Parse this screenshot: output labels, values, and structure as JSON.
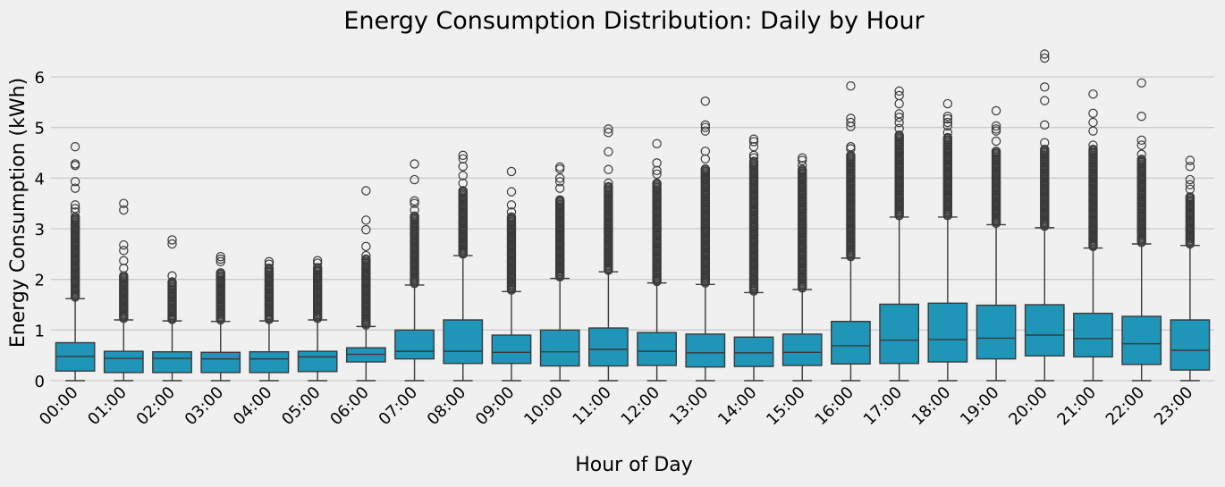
{
  "chart_data": {
    "type": "box",
    "title": "Energy Consumption Distribution: Daily by Hour",
    "xlabel": "Hour of Day",
    "ylabel": "Energy Consumption (kWh)",
    "ylim": [
      -0.05,
      6.6
    ],
    "y_ticks": [
      0,
      1,
      2,
      3,
      4,
      5,
      6
    ],
    "grid": true,
    "box_color": "#1f95b8",
    "background": "#f0f0f0",
    "categories": [
      "00:00",
      "01:00",
      "02:00",
      "03:00",
      "04:00",
      "05:00",
      "06:00",
      "07:00",
      "08:00",
      "09:00",
      "10:00",
      "11:00",
      "12:00",
      "13:00",
      "14:00",
      "15:00",
      "16:00",
      "17:00",
      "18:00",
      "19:00",
      "20:00",
      "21:00",
      "22:00",
      "23:00"
    ],
    "boxes": [
      {
        "min": 0.0,
        "q1": 0.19,
        "median": 0.48,
        "q3": 0.75,
        "max": 1.62,
        "outlier_max": 4.62,
        "outliers": [
          4.62,
          4.28,
          4.25,
          3.93,
          3.8,
          3.47,
          3.4,
          3.33,
          3.23
        ]
      },
      {
        "min": 0.0,
        "q1": 0.16,
        "median": 0.44,
        "q3": 0.58,
        "max": 1.2,
        "outlier_max": 3.5,
        "outliers": [
          3.5,
          3.37,
          2.68,
          2.57,
          2.37,
          2.22,
          2.07
        ]
      },
      {
        "min": 0.0,
        "q1": 0.16,
        "median": 0.44,
        "q3": 0.57,
        "max": 1.18,
        "outlier_max": 2.78,
        "outliers": [
          2.78,
          2.7,
          2.07,
          1.95
        ]
      },
      {
        "min": 0.0,
        "q1": 0.16,
        "median": 0.43,
        "q3": 0.56,
        "max": 1.17,
        "outlier_max": 2.45,
        "outliers": [
          2.45,
          2.4,
          2.35,
          2.13
        ]
      },
      {
        "min": 0.0,
        "q1": 0.16,
        "median": 0.43,
        "q3": 0.57,
        "max": 1.18,
        "outlier_max": 2.35,
        "outliers": [
          2.35,
          2.3,
          2.22
        ]
      },
      {
        "min": 0.0,
        "q1": 0.18,
        "median": 0.47,
        "q3": 0.58,
        "max": 1.2,
        "outlier_max": 2.37,
        "outliers": [
          2.37,
          2.32,
          2.23
        ]
      },
      {
        "min": 0.0,
        "q1": 0.37,
        "median": 0.52,
        "q3": 0.65,
        "max": 1.07,
        "outlier_max": 3.75,
        "outliers": [
          3.75,
          3.17,
          2.98,
          2.65,
          2.47,
          2.4
        ]
      },
      {
        "min": 0.0,
        "q1": 0.43,
        "median": 0.58,
        "q3": 1.0,
        "max": 1.89,
        "outlier_max": 4.28,
        "outliers": [
          4.28,
          3.97,
          3.55,
          3.5,
          3.37,
          3.25
        ]
      },
      {
        "min": 0.0,
        "q1": 0.34,
        "median": 0.58,
        "q3": 1.2,
        "max": 2.47,
        "outlier_max": 4.45,
        "outliers": [
          4.45,
          4.38,
          4.23,
          4.05,
          3.9,
          3.75
        ]
      },
      {
        "min": 0.0,
        "q1": 0.34,
        "median": 0.56,
        "q3": 0.9,
        "max": 1.76,
        "outlier_max": 4.13,
        "outliers": [
          4.13,
          3.73,
          3.47,
          3.33,
          3.23
        ]
      },
      {
        "min": 0.0,
        "q1": 0.29,
        "median": 0.57,
        "q3": 1.0,
        "max": 2.02,
        "outlier_max": 4.22,
        "outliers": [
          4.22,
          4.18,
          4.0,
          3.93,
          3.8,
          3.57
        ]
      },
      {
        "min": 0.0,
        "q1": 0.29,
        "median": 0.62,
        "q3": 1.04,
        "max": 2.15,
        "outlier_max": 4.97,
        "outliers": [
          4.97,
          4.9,
          4.52,
          4.17,
          3.9,
          3.83
        ]
      },
      {
        "min": 0.0,
        "q1": 0.3,
        "median": 0.58,
        "q3": 0.95,
        "max": 1.93,
        "outlier_max": 4.68,
        "outliers": [
          4.68,
          4.3,
          4.15,
          4.08,
          3.9
        ]
      },
      {
        "min": 0.0,
        "q1": 0.27,
        "median": 0.55,
        "q3": 0.92,
        "max": 1.9,
        "outlier_max": 5.52,
        "outliers": [
          5.52,
          5.05,
          5.0,
          4.93,
          4.53,
          4.38,
          4.18
        ]
      },
      {
        "min": 0.0,
        "q1": 0.28,
        "median": 0.55,
        "q3": 0.86,
        "max": 1.74,
        "outlier_max": 4.77,
        "outliers": [
          4.77,
          4.72,
          4.62,
          4.45,
          4.4,
          4.33
        ]
      },
      {
        "min": 0.0,
        "q1": 0.3,
        "median": 0.56,
        "q3": 0.92,
        "max": 1.8,
        "outlier_max": 4.4,
        "outliers": [
          4.4,
          4.35,
          4.25,
          4.17
        ]
      },
      {
        "min": 0.0,
        "q1": 0.33,
        "median": 0.69,
        "q3": 1.17,
        "max": 2.42,
        "outlier_max": 5.82,
        "outliers": [
          5.82,
          5.18,
          5.1,
          5.02,
          4.62,
          4.58,
          4.45
        ]
      },
      {
        "min": 0.0,
        "q1": 0.34,
        "median": 0.8,
        "q3": 1.51,
        "max": 3.23,
        "outlier_max": 5.72,
        "outliers": [
          5.72,
          5.63,
          5.47,
          5.27,
          5.2,
          5.1,
          4.98,
          4.85
        ]
      },
      {
        "min": 0.0,
        "q1": 0.37,
        "median": 0.81,
        "q3": 1.53,
        "max": 3.23,
        "outlier_max": 5.47,
        "outliers": [
          5.47,
          5.22,
          5.17,
          5.1,
          5.03,
          4.9,
          4.8
        ]
      },
      {
        "min": 0.0,
        "q1": 0.43,
        "median": 0.84,
        "q3": 1.49,
        "max": 3.08,
        "outlier_max": 5.33,
        "outliers": [
          5.33,
          5.03,
          4.97,
          4.93,
          4.73,
          4.53
        ]
      },
      {
        "min": 0.0,
        "q1": 0.49,
        "median": 0.9,
        "q3": 1.5,
        "max": 3.02,
        "outlier_max": 6.45,
        "outliers": [
          6.45,
          6.37,
          5.8,
          5.53,
          5.05,
          4.7,
          4.57
        ]
      },
      {
        "min": 0.0,
        "q1": 0.47,
        "median": 0.83,
        "q3": 1.33,
        "max": 2.62,
        "outlier_max": 5.66,
        "outliers": [
          5.66,
          5.28,
          5.1,
          4.93,
          4.65,
          4.57
        ]
      },
      {
        "min": 0.0,
        "q1": 0.32,
        "median": 0.73,
        "q3": 1.27,
        "max": 2.7,
        "outlier_max": 5.88,
        "outliers": [
          5.88,
          5.22,
          4.75,
          4.65,
          4.47,
          4.37
        ]
      },
      {
        "min": 0.0,
        "q1": 0.21,
        "median": 0.6,
        "q3": 1.2,
        "max": 2.67,
        "outlier_max": 4.35,
        "outliers": [
          4.35,
          4.23,
          3.97,
          3.87,
          3.78,
          3.63
        ]
      }
    ]
  }
}
